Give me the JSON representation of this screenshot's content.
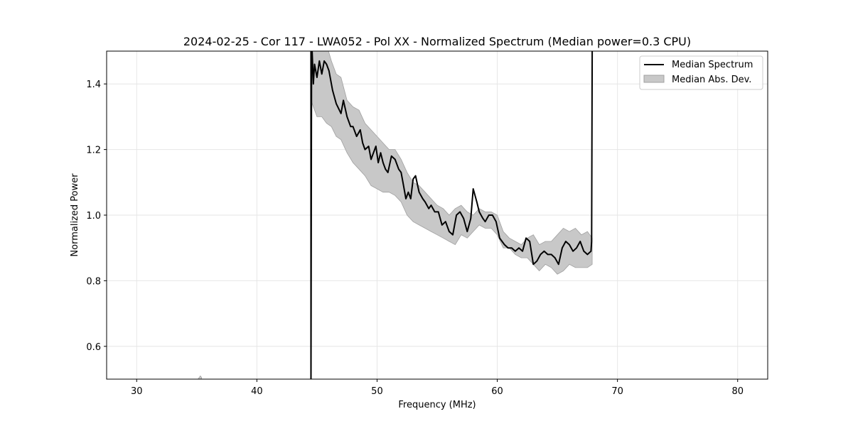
{
  "chart_data": {
    "type": "line",
    "title": "2024-02-25 - Cor 117 - LWA052 - Pol XX - Normalized Spectrum (Median power=0.3 CPU)",
    "xlabel": "Frequency (MHz)",
    "ylabel": "Normalized Power",
    "xlim": [
      27.5,
      82.5
    ],
    "ylim": [
      0.5,
      1.5
    ],
    "xticks": [
      30,
      40,
      50,
      60,
      70,
      80
    ],
    "yticks": [
      0.6,
      0.8,
      1.0,
      1.2,
      1.4
    ],
    "xtick_labels": [
      "30",
      "40",
      "50",
      "60",
      "70",
      "80"
    ],
    "ytick_labels": [
      "0.6",
      "0.8",
      "1.0",
      "1.2",
      "1.4"
    ],
    "grid": true,
    "legend_position": "top-right",
    "legend": [
      "Median Spectrum",
      "Median Abs. Dev."
    ],
    "colors": {
      "line": "#000000",
      "band": "#c8c8c8",
      "band_edge": "#a0a0a0",
      "grid": "#e6e6e6"
    },
    "series": [
      {
        "name": "Median Spectrum",
        "x": [
          44.5,
          44.55,
          44.6,
          44.7,
          44.8,
          45.0,
          45.2,
          45.4,
          45.6,
          45.8,
          46.0,
          46.3,
          46.6,
          47.0,
          47.2,
          47.5,
          47.8,
          48.0,
          48.3,
          48.6,
          48.8,
          49.0,
          49.3,
          49.5,
          49.7,
          49.9,
          50.1,
          50.3,
          50.5,
          50.7,
          50.9,
          51.2,
          51.5,
          51.8,
          52.0,
          52.2,
          52.4,
          52.6,
          52.8,
          53.0,
          53.2,
          53.5,
          53.8,
          54.0,
          54.3,
          54.5,
          54.8,
          55.1,
          55.4,
          55.7,
          56.0,
          56.3,
          56.6,
          56.9,
          57.2,
          57.5,
          57.8,
          58.0,
          58.3,
          58.5,
          58.8,
          59.0,
          59.3,
          59.6,
          59.9,
          60.2,
          60.4,
          60.6,
          60.9,
          61.2,
          61.5,
          61.8,
          62.1,
          62.4,
          62.7,
          63.0,
          63.3,
          63.6,
          63.9,
          64.2,
          64.5,
          64.8,
          65.1,
          65.4,
          65.7,
          66.0,
          66.3,
          66.6,
          66.9,
          67.2,
          67.5,
          67.8,
          67.85,
          67.9
        ],
        "values": [
          0.5,
          1.5,
          1.5,
          1.4,
          1.46,
          1.42,
          1.47,
          1.43,
          1.47,
          1.46,
          1.44,
          1.38,
          1.34,
          1.31,
          1.35,
          1.3,
          1.27,
          1.27,
          1.24,
          1.26,
          1.22,
          1.2,
          1.21,
          1.17,
          1.19,
          1.21,
          1.16,
          1.19,
          1.16,
          1.14,
          1.13,
          1.18,
          1.17,
          1.14,
          1.13,
          1.09,
          1.05,
          1.07,
          1.05,
          1.11,
          1.12,
          1.07,
          1.05,
          1.04,
          1.02,
          1.03,
          1.01,
          1.01,
          0.97,
          0.98,
          0.95,
          0.94,
          1.0,
          1.01,
          0.99,
          0.95,
          0.99,
          1.08,
          1.04,
          1.01,
          0.99,
          0.98,
          1.0,
          1.0,
          0.98,
          0.93,
          0.92,
          0.91,
          0.9,
          0.9,
          0.89,
          0.9,
          0.89,
          0.93,
          0.92,
          0.85,
          0.86,
          0.88,
          0.89,
          0.88,
          0.88,
          0.87,
          0.85,
          0.9,
          0.92,
          0.91,
          0.89,
          0.9,
          0.92,
          0.89,
          0.88,
          0.89,
          0.92,
          1.5
        ]
      },
      {
        "name": "Median Abs. Dev.",
        "x": [
          44.5,
          45.0,
          45.4,
          45.8,
          46.2,
          46.6,
          47.0,
          47.5,
          48.0,
          48.5,
          49.0,
          49.5,
          50.0,
          50.5,
          51.0,
          51.5,
          52.0,
          52.5,
          53.0,
          53.5,
          54.0,
          54.5,
          55.0,
          55.5,
          56.0,
          56.5,
          57.0,
          57.5,
          58.0,
          58.5,
          59.0,
          59.5,
          60.0,
          60.5,
          61.0,
          61.5,
          62.0,
          62.5,
          63.0,
          63.5,
          64.0,
          64.5,
          65.0,
          65.5,
          66.0,
          66.5,
          67.0,
          67.5,
          67.9
        ],
        "upper": [
          1.5,
          1.5,
          1.5,
          1.52,
          1.47,
          1.43,
          1.42,
          1.35,
          1.33,
          1.32,
          1.28,
          1.26,
          1.24,
          1.22,
          1.2,
          1.2,
          1.17,
          1.13,
          1.1,
          1.09,
          1.07,
          1.05,
          1.03,
          1.02,
          1.0,
          1.02,
          1.03,
          1.01,
          1.0,
          1.02,
          1.01,
          1.01,
          1.0,
          0.95,
          0.93,
          0.92,
          0.91,
          0.93,
          0.94,
          0.91,
          0.92,
          0.92,
          0.94,
          0.96,
          0.95,
          0.96,
          0.94,
          0.95,
          0.93
        ],
        "lower": [
          1.35,
          1.3,
          1.3,
          1.28,
          1.27,
          1.24,
          1.23,
          1.19,
          1.16,
          1.14,
          1.12,
          1.09,
          1.08,
          1.07,
          1.07,
          1.06,
          1.04,
          1.0,
          0.98,
          0.97,
          0.96,
          0.95,
          0.94,
          0.93,
          0.92,
          0.91,
          0.94,
          0.93,
          0.95,
          0.97,
          0.96,
          0.96,
          0.94,
          0.9,
          0.9,
          0.88,
          0.87,
          0.87,
          0.85,
          0.83,
          0.85,
          0.84,
          0.82,
          0.83,
          0.85,
          0.84,
          0.84,
          0.84,
          0.85
        ]
      }
    ],
    "stray_band": {
      "x": [
        35.1,
        35.2,
        35.3,
        35.4
      ],
      "upper": [
        0.5,
        0.505,
        0.51,
        0.505
      ],
      "lower": [
        0.5,
        0.5,
        0.5,
        0.5
      ]
    }
  }
}
